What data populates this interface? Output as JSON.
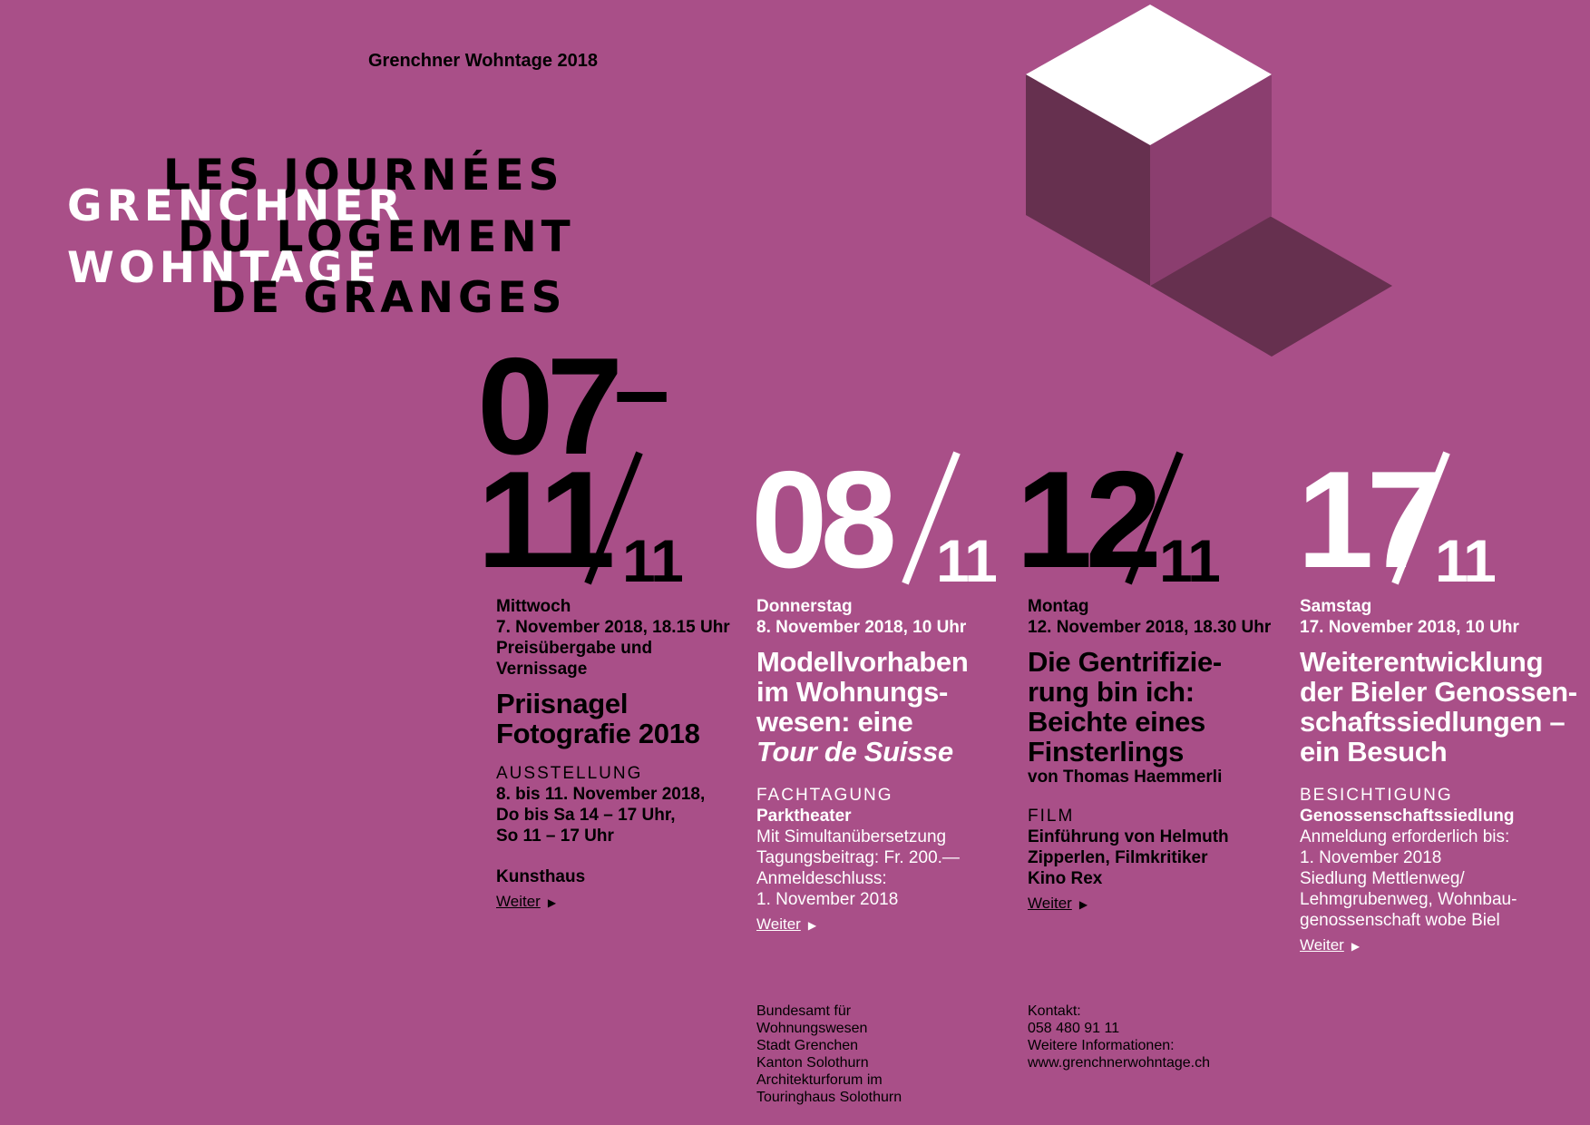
{
  "header": {
    "site_label": "Grenchner Wohntage 2018"
  },
  "title": {
    "fr_lines": [
      "LES JOURNÉES",
      "DU LOGEMENT",
      "DE GRANGES"
    ],
    "de_lines": [
      "GRENCHNER",
      "WOHNTAGE"
    ]
  },
  "colors": {
    "background": "#a94f88",
    "cube_top": "#ffffff",
    "cube_left": "#66304f",
    "cube_right": "#8b3e6f",
    "cube_shadow": "#66304f"
  },
  "dates": {
    "range": {
      "start": "07",
      "dash": "–",
      "end": "11",
      "month": "11"
    },
    "d2": {
      "day": "08",
      "month": "11"
    },
    "d3": {
      "day": "12",
      "month": "11"
    },
    "d4": {
      "day": "17",
      "month": "11"
    }
  },
  "events": [
    {
      "weekday": "Mittwoch",
      "datetime": "7. November 2018, 18.15 Uhr",
      "intro": "Preisübergabe und Vernissage",
      "title": "Priisnagel Fotografie 2018",
      "category": "AUSSTELLUNG",
      "details": [
        "8. bis 11. November 2018,",
        "Do bis Sa 14 – 17 Uhr,",
        "So 11 – 17 Uhr"
      ],
      "venue": "Kunsthaus",
      "more": "Weiter"
    },
    {
      "weekday": "Donnerstag",
      "datetime": "8. November 2018, 10 Uhr",
      "title_lines": [
        "Modellvorhaben",
        "im Wohnungs-",
        "wesen: eine"
      ],
      "title_italic": "Tour de Suisse",
      "category": "FACHTAGUNG",
      "venue": "Parktheater",
      "details": [
        "Mit Simultanübersetzung",
        "Tagungsbeitrag: Fr. 200.—",
        "Anmeldeschluss:",
        "1. November 2018"
      ],
      "more": "Weiter"
    },
    {
      "weekday": "Montag",
      "datetime": "12. November 2018, 18.30 Uhr",
      "title_lines": [
        "Die Gentrifizie-",
        "rung bin ich:",
        "Beichte eines",
        "Finsterlings"
      ],
      "byline": "von Thomas Haemmerli",
      "category": "FILM",
      "details": [
        "Einführung von Helmuth",
        "Zipperlen, Filmkritiker",
        "Kino Rex"
      ],
      "more": "Weiter"
    },
    {
      "weekday": "Samstag",
      "datetime": "17. November 2018, 10 Uhr",
      "title_lines": [
        "Weiterentwicklung",
        "der Bieler Genossen-",
        "schaftssiedlungen –",
        "ein Besuch"
      ],
      "category": "BESICHTIGUNG",
      "venue": "Genossenschaftssiedlung",
      "details": [
        "Anmeldung erforderlich bis:",
        "1. November 2018",
        "Siedlung Mettlenweg/",
        "Lehmgrubenweg, Wohnbau-",
        "genossenschaft wobe Biel"
      ],
      "more": "Weiter"
    }
  ],
  "footer": {
    "partners": [
      "Bundesamt für",
      "Wohnungswesen",
      "Stadt Grenchen",
      "Kanton Solothurn",
      "Architekturforum im",
      "Touringhaus Solothurn"
    ],
    "contact": [
      "Kontakt:",
      "058 480 91 11",
      "Weitere Informationen:",
      "www.grenchnerwohntage.ch"
    ]
  }
}
